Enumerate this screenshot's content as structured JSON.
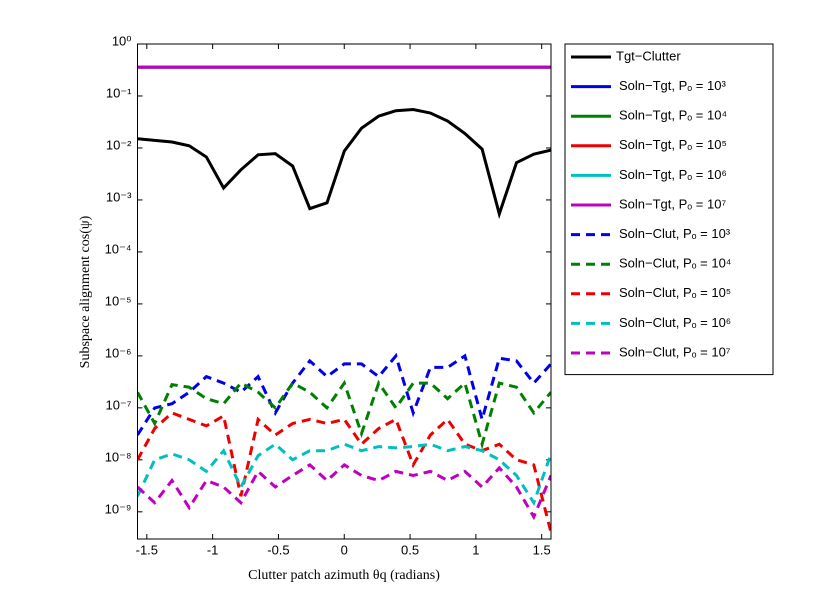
{
  "chart_data": {
    "type": "line",
    "ylabel": "Subspace alignment cos(ψ)",
    "xlabel": "Clutter patch azimuth θq (radians)",
    "log_y": true,
    "xlim": [
      -1.5708,
      1.5708
    ],
    "ylim": [
      3e-10,
      1
    ],
    "xticks": [
      -1.5,
      -1,
      -0.5,
      0,
      0.5,
      1,
      1.5
    ],
    "yticks": [
      {
        "value": 1,
        "label": "10⁰"
      },
      {
        "value": 0.1,
        "label": "10⁻¹"
      },
      {
        "value": 0.01,
        "label": "10⁻²"
      },
      {
        "value": 0.001,
        "label": "10⁻³"
      },
      {
        "value": 0.0001,
        "label": "10⁻⁴"
      },
      {
        "value": 1e-05,
        "label": "10⁻⁵"
      },
      {
        "value": 1e-06,
        "label": "10⁻⁶"
      },
      {
        "value": 1e-07,
        "label": "10⁻⁷"
      },
      {
        "value": 1e-08,
        "label": "10⁻⁸"
      },
      {
        "value": 1e-09,
        "label": "10⁻⁹"
      }
    ],
    "legend": "outside-right",
    "x": [
      -1.5708,
      -1.4399,
      -1.309,
      -1.1781,
      -1.0472,
      -0.9163,
      -0.7854,
      -0.6545,
      -0.5236,
      -0.3927,
      -0.2618,
      -0.1309,
      0,
      0.1309,
      0.2618,
      0.3927,
      0.5236,
      0.6545,
      0.7854,
      0.9163,
      1.0472,
      1.1781,
      1.309,
      1.4399,
      1.5708
    ],
    "series": [
      {
        "name": "Tgt−Clutter",
        "color": "#000000",
        "style": "solid",
        "values": [
          0.015,
          0.014,
          0.013,
          0.011,
          0.0067,
          0.0017,
          0.0038,
          0.0074,
          0.0078,
          0.0045,
          0.00068,
          0.00088,
          0.0087,
          0.024,
          0.041,
          0.052,
          0.055,
          0.047,
          0.033,
          0.019,
          0.0095,
          0.00054,
          0.0052,
          0.0076,
          0.0091
        ]
      },
      {
        "name": "Soln−Tgt, Pₒ = 10³",
        "color": "#0000ee",
        "style": "solid",
        "values": [
          0.36,
          0.36,
          0.36,
          0.36,
          0.36,
          0.36,
          0.36,
          0.36,
          0.36,
          0.36,
          0.36,
          0.36,
          0.36,
          0.36,
          0.36,
          0.36,
          0.36,
          0.36,
          0.36,
          0.36,
          0.36,
          0.36,
          0.36,
          0.36,
          0.36
        ]
      },
      {
        "name": "Soln−Tgt, Pₒ = 10⁴",
        "color": "#008000",
        "style": "solid",
        "values": [
          0.36,
          0.36,
          0.36,
          0.36,
          0.36,
          0.36,
          0.36,
          0.36,
          0.36,
          0.36,
          0.36,
          0.36,
          0.36,
          0.36,
          0.36,
          0.36,
          0.36,
          0.36,
          0.36,
          0.36,
          0.36,
          0.36,
          0.36,
          0.36,
          0.36
        ]
      },
      {
        "name": "Soln−Tgt, Pₒ = 10⁵",
        "color": "#ee0000",
        "style": "solid",
        "values": [
          0.36,
          0.36,
          0.36,
          0.36,
          0.36,
          0.36,
          0.36,
          0.36,
          0.36,
          0.36,
          0.36,
          0.36,
          0.36,
          0.36,
          0.36,
          0.36,
          0.36,
          0.36,
          0.36,
          0.36,
          0.36,
          0.36,
          0.36,
          0.36,
          0.36
        ]
      },
      {
        "name": "Soln−Tgt, Pₒ = 10⁶",
        "color": "#00bfbf",
        "style": "solid",
        "values": [
          0.36,
          0.36,
          0.36,
          0.36,
          0.36,
          0.36,
          0.36,
          0.36,
          0.36,
          0.36,
          0.36,
          0.36,
          0.36,
          0.36,
          0.36,
          0.36,
          0.36,
          0.36,
          0.36,
          0.36,
          0.36,
          0.36,
          0.36,
          0.36,
          0.36
        ]
      },
      {
        "name": "Soln−Tgt, Pₒ = 10⁷",
        "color": "#bf00bf",
        "style": "solid",
        "values": [
          0.36,
          0.36,
          0.36,
          0.36,
          0.36,
          0.36,
          0.36,
          0.36,
          0.36,
          0.36,
          0.36,
          0.36,
          0.36,
          0.36,
          0.36,
          0.36,
          0.36,
          0.36,
          0.36,
          0.36,
          0.36,
          0.36,
          0.36,
          0.36,
          0.36
        ]
      },
      {
        "name": "Soln−Clut, Pₒ = 10³",
        "color": "#0000ee",
        "style": "dashed",
        "values": [
          3e-08,
          1e-07,
          1.2e-07,
          2e-07,
          4e-07,
          3e-07,
          2e-07,
          4e-07,
          8e-08,
          3e-07,
          8e-07,
          4e-07,
          7e-07,
          7e-07,
          4e-07,
          1e-06,
          8e-08,
          6e-07,
          6e-07,
          1e-06,
          6e-08,
          9e-07,
          8e-07,
          3e-07,
          7e-07
        ]
      },
      {
        "name": "Soln−Clut, Pₒ = 10⁴",
        "color": "#008000",
        "style": "dashed",
        "values": [
          2e-07,
          5e-08,
          2.8e-07,
          2.5e-07,
          1.5e-07,
          1.2e-07,
          3e-07,
          2e-07,
          1e-07,
          3e-07,
          2e-07,
          1e-07,
          3e-07,
          3.2e-08,
          3e-07,
          1e-07,
          3e-07,
          3e-07,
          1.5e-07,
          3e-07,
          2e-08,
          3e-07,
          2.5e-07,
          8e-08,
          2e-07
        ]
      },
      {
        "name": "Soln−Clut, Pₒ = 10⁵",
        "color": "#ee0000",
        "style": "dashed",
        "values": [
          1e-08,
          4e-08,
          8e-08,
          6e-08,
          4.5e-08,
          7e-08,
          2e-09,
          6e-08,
          3e-08,
          5e-08,
          6e-08,
          5e-08,
          6e-08,
          2e-08,
          4e-08,
          6e-08,
          8e-09,
          3e-08,
          6e-08,
          2e-08,
          1.5e-08,
          2e-08,
          1e-08,
          8e-09,
          4e-10
        ]
      },
      {
        "name": "Soln−Clut, Pₒ = 10⁶",
        "color": "#00bfbf",
        "style": "dashed",
        "values": [
          2e-09,
          1e-08,
          1.3e-08,
          1e-08,
          6e-09,
          1.5e-08,
          3e-09,
          1.2e-08,
          2e-08,
          1e-08,
          1.5e-08,
          1.5e-08,
          2e-08,
          1.5e-08,
          1.8e-08,
          1.7e-08,
          1.8e-08,
          2e-08,
          1.5e-08,
          1.8e-08,
          1.5e-08,
          1e-08,
          5e-09,
          1.5e-09,
          1.3e-08
        ]
      },
      {
        "name": "Soln−Clut, Pₒ = 10⁷",
        "color": "#bf00bf",
        "style": "dashed",
        "values": [
          3e-09,
          1.5e-09,
          4e-09,
          1.2e-09,
          4e-09,
          3e-09,
          1.5e-09,
          6e-09,
          3e-09,
          5e-09,
          8e-09,
          4e-09,
          8e-09,
          5e-09,
          4e-09,
          6e-09,
          5e-09,
          6e-09,
          4e-09,
          6e-09,
          3e-09,
          7e-09,
          3e-09,
          8e-10,
          5e-09
        ]
      }
    ]
  }
}
